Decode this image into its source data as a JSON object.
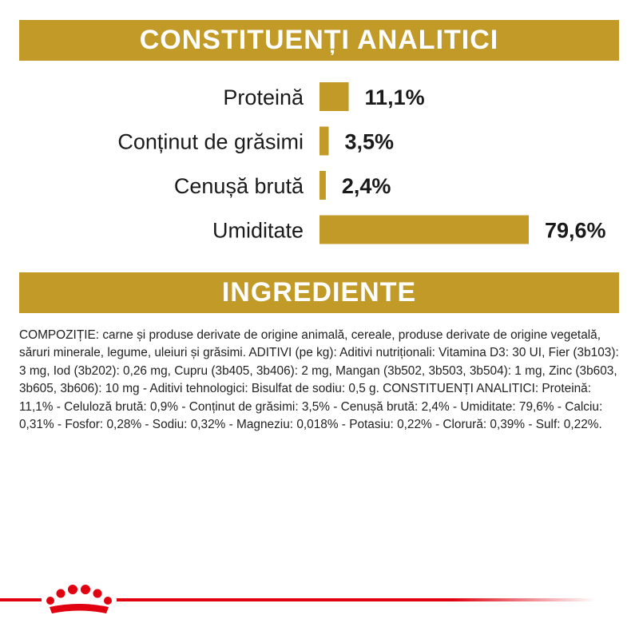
{
  "colors": {
    "gold": "#C19A28",
    "brand_red": "#E1000F"
  },
  "headers": {
    "analytical": "CONSTITUENȚI ANALITICI",
    "ingredients": "INGREDIENTE"
  },
  "chart_data": {
    "type": "bar",
    "orientation": "horizontal",
    "categories": [
      "Proteină",
      "Conținut de grăsimi",
      "Cenușă brută",
      "Umiditate"
    ],
    "values": [
      11.1,
      3.5,
      2.4,
      79.6
    ],
    "value_labels": [
      "11,1%",
      "3,5%",
      "2,4%",
      "79,6%"
    ],
    "unit": "%",
    "xlim": [
      0,
      79.6
    ],
    "grid": false
  },
  "composition_text": "COMPOZIȚIE: carne și produse derivate de origine animală, cereale, produse derivate de origine vegetală, săruri minerale, legume, uleiuri și grăsimi. ADITIVI (pe kg): Aditivi nutriționali: Vitamina D3: 30 UI, Fier (3b103): 3 mg, Iod (3b202): 0,26 mg, Cupru (3b405, 3b406): 2 mg, Mangan (3b502, 3b503, 3b504): 1 mg, Zinc (3b603, 3b605, 3b606): 10 mg - Aditivi tehnologici: Bisulfat de sodiu: 0,5 g. CONSTITUENȚI ANALITICI: Proteină: 11,1% - Celuloză brută: 0,9% - Conținut de grăsimi: 3,5% - Cenușă brută: 2,4% - Umiditate: 79,6% - Calciu: 0,31% - Fosfor: 0,28% - Sodiu: 0,32% - Magneziu: 0,018% - Potasiu: 0,22% - Clorură: 0,39% - Sulf: 0,22%.",
  "footer": {
    "logo_icon": "crown-icon"
  }
}
